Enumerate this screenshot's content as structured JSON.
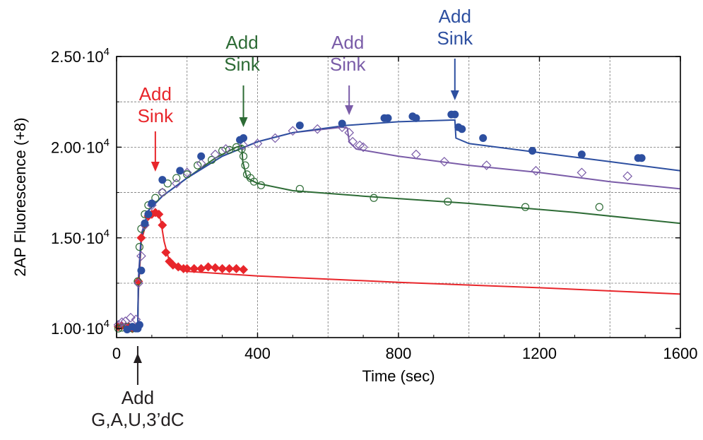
{
  "chart_data": {
    "type": "scatter",
    "title": "",
    "xlabel": "Time (sec)",
    "ylabel": "2AP Fluorescence (+8)",
    "xlim": [
      0,
      1600
    ],
    "ylim": [
      9500,
      25000
    ],
    "x_ticks": [
      0,
      400,
      800,
      1200,
      1600
    ],
    "x_tick_labels": [
      "0",
      "400",
      "800",
      "1200",
      "1600"
    ],
    "y_ticks": [
      10000,
      15000,
      20000,
      25000
    ],
    "y_tick_labels": [
      {
        "mantissa": "1.00",
        "base": "·10",
        "exp": "4"
      },
      {
        "mantissa": "1.50",
        "base": "·10",
        "exp": "4"
      },
      {
        "mantissa": "2.00",
        "base": "·10",
        "exp": "4"
      },
      {
        "mantissa": "2.50",
        "base": "·10",
        "exp": "4"
      }
    ],
    "grid": true,
    "grid_x": [
      200,
      400,
      600,
      800,
      1000,
      1200,
      1400
    ],
    "grid_y": [
      12500,
      15000,
      17500,
      20000,
      22500
    ],
    "series": [
      {
        "color": "#e8262b",
        "marker": "diamond-filled",
        "points": [
          [
            5,
            10100
          ],
          [
            15,
            10150
          ],
          [
            25,
            10100
          ],
          [
            35,
            10100
          ],
          [
            45,
            10000
          ],
          [
            58,
            10100
          ],
          [
            62,
            12600
          ],
          [
            70,
            15000
          ],
          [
            80,
            15700
          ],
          [
            90,
            16200
          ],
          [
            100,
            16300
          ],
          [
            110,
            16400
          ],
          [
            120,
            16300
          ],
          [
            130,
            15700
          ],
          [
            140,
            14200
          ],
          [
            150,
            13700
          ],
          [
            160,
            13500
          ],
          [
            175,
            13400
          ],
          [
            190,
            13300
          ],
          [
            200,
            13300
          ],
          [
            220,
            13300
          ],
          [
            240,
            13300
          ],
          [
            260,
            13400
          ],
          [
            280,
            13350
          ],
          [
            300,
            13300
          ],
          [
            320,
            13300
          ],
          [
            340,
            13300
          ],
          [
            360,
            13250
          ]
        ],
        "fit": [
          [
            0,
            10100
          ],
          [
            60,
            10100
          ],
          [
            62,
            12000
          ],
          [
            70,
            14800
          ],
          [
            85,
            15900
          ],
          [
            105,
            16300
          ],
          [
            115,
            16400
          ],
          [
            125,
            16000
          ],
          [
            135,
            14800
          ],
          [
            150,
            13700
          ],
          [
            170,
            13300
          ],
          [
            200,
            13150
          ],
          [
            400,
            12900
          ],
          [
            800,
            12550
          ],
          [
            1200,
            12250
          ],
          [
            1600,
            11900
          ]
        ]
      },
      {
        "color": "#2d6b35",
        "marker": "circle-open",
        "points": [
          [
            5,
            10000
          ],
          [
            15,
            10050
          ],
          [
            30,
            10100
          ],
          [
            45,
            10000
          ],
          [
            60,
            12600
          ],
          [
            65,
            14500
          ],
          [
            70,
            15500
          ],
          [
            80,
            16300
          ],
          [
            90,
            16800
          ],
          [
            110,
            17200
          ],
          [
            130,
            17500
          ],
          [
            145,
            18000
          ],
          [
            170,
            18300
          ],
          [
            200,
            18500
          ],
          [
            230,
            19000
          ],
          [
            270,
            19300
          ],
          [
            300,
            19800
          ],
          [
            320,
            19850
          ],
          [
            340,
            20000
          ],
          [
            355,
            19900
          ],
          [
            360,
            19500
          ],
          [
            365,
            19000
          ],
          [
            370,
            18500
          ],
          [
            380,
            18300
          ],
          [
            390,
            18100
          ],
          [
            410,
            17900
          ],
          [
            520,
            17700
          ],
          [
            730,
            17200
          ],
          [
            940,
            17000
          ],
          [
            1160,
            16700
          ],
          [
            1370,
            16700
          ]
        ],
        "fit": [
          [
            0,
            10100
          ],
          [
            60,
            10100
          ],
          [
            62,
            12500
          ],
          [
            70,
            15000
          ],
          [
            90,
            16500
          ],
          [
            130,
            17300
          ],
          [
            200,
            18300
          ],
          [
            280,
            19400
          ],
          [
            340,
            20000
          ],
          [
            355,
            20100
          ],
          [
            358,
            19200
          ],
          [
            370,
            18300
          ],
          [
            400,
            18000
          ],
          [
            500,
            17600
          ],
          [
            700,
            17300
          ],
          [
            1000,
            16900
          ],
          [
            1300,
            16400
          ],
          [
            1600,
            15800
          ]
        ]
      },
      {
        "color": "#7a5ca8",
        "marker": "diamond-open",
        "points": [
          [
            5,
            10200
          ],
          [
            15,
            10350
          ],
          [
            25,
            10400
          ],
          [
            40,
            10600
          ],
          [
            55,
            10500
          ],
          [
            62,
            12500
          ],
          [
            70,
            14000
          ],
          [
            80,
            15700
          ],
          [
            100,
            16800
          ],
          [
            130,
            17500
          ],
          [
            170,
            18000
          ],
          [
            200,
            18600
          ],
          [
            240,
            19100
          ],
          [
            280,
            19600
          ],
          [
            310,
            19900
          ],
          [
            360,
            20100
          ],
          [
            400,
            20200
          ],
          [
            450,
            20500
          ],
          [
            500,
            20900
          ],
          [
            570,
            21000
          ],
          [
            640,
            21100
          ],
          [
            660,
            20800
          ],
          [
            670,
            20300
          ],
          [
            690,
            20100
          ],
          [
            700,
            20000
          ],
          [
            850,
            19600
          ],
          [
            930,
            19200
          ],
          [
            1050,
            19000
          ],
          [
            1190,
            18700
          ],
          [
            1320,
            18600
          ],
          [
            1450,
            18400
          ]
        ],
        "fit": [
          [
            0,
            10100
          ],
          [
            60,
            10100
          ],
          [
            62,
            12800
          ],
          [
            70,
            15200
          ],
          [
            90,
            16500
          ],
          [
            130,
            17300
          ],
          [
            200,
            18300
          ],
          [
            300,
            19500
          ],
          [
            400,
            20300
          ],
          [
            500,
            20800
          ],
          [
            640,
            21100
          ],
          [
            655,
            21050
          ],
          [
            660,
            20300
          ],
          [
            680,
            19900
          ],
          [
            800,
            19500
          ],
          [
            1000,
            19000
          ],
          [
            1200,
            18600
          ],
          [
            1400,
            18100
          ],
          [
            1600,
            17700
          ]
        ]
      },
      {
        "color": "#2d4fa0",
        "marker": "circle-filled",
        "points": [
          [
            30,
            9950
          ],
          [
            45,
            10100
          ],
          [
            55,
            10000
          ],
          [
            60,
            10000
          ],
          [
            65,
            10200
          ],
          [
            70,
            13200
          ],
          [
            80,
            15800
          ],
          [
            90,
            16300
          ],
          [
            100,
            16900
          ],
          [
            130,
            18200
          ],
          [
            180,
            18700
          ],
          [
            240,
            19500
          ],
          [
            350,
            20400
          ],
          [
            360,
            20500
          ],
          [
            520,
            21200
          ],
          [
            640,
            21300
          ],
          [
            760,
            21600
          ],
          [
            770,
            21600
          ],
          [
            840,
            21700
          ],
          [
            850,
            21600
          ],
          [
            950,
            21800
          ],
          [
            960,
            21800
          ],
          [
            970,
            21100
          ],
          [
            980,
            21000
          ],
          [
            1040,
            20500
          ],
          [
            1180,
            19800
          ],
          [
            1320,
            19600
          ],
          [
            1480,
            19400
          ],
          [
            1490,
            19400
          ]
        ],
        "fit": [
          [
            0,
            10100
          ],
          [
            60,
            10100
          ],
          [
            62,
            12500
          ],
          [
            70,
            15000
          ],
          [
            90,
            16500
          ],
          [
            130,
            17300
          ],
          [
            200,
            18300
          ],
          [
            300,
            19500
          ],
          [
            400,
            20300
          ],
          [
            500,
            20800
          ],
          [
            650,
            21200
          ],
          [
            800,
            21400
          ],
          [
            960,
            21500
          ],
          [
            963,
            20500
          ],
          [
            1000,
            20200
          ],
          [
            1200,
            19700
          ],
          [
            1400,
            19200
          ],
          [
            1600,
            18700
          ]
        ]
      }
    ],
    "annotations": [
      {
        "id": "red",
        "line1": "Add",
        "line2": "Sink",
        "color": "#e8262b",
        "x": 110,
        "y": 16500
      },
      {
        "id": "green",
        "line1": "Add",
        "line2": "Sink",
        "color": "#2d6b35",
        "x": 360,
        "y": 20500
      },
      {
        "id": "purple",
        "line1": "Add",
        "line2": "Sink",
        "color": "#7a5ca8",
        "x": 660,
        "y": 21500
      },
      {
        "id": "blue",
        "line1": "Add",
        "line2": "Sink",
        "color": "#2d4fa0",
        "x": 960,
        "y": 22300
      },
      {
        "id": "black",
        "line1": "Add",
        "line2": "G,A,U,3’dC",
        "color": "#231f20",
        "x": 60,
        "y": 9500
      }
    ]
  }
}
